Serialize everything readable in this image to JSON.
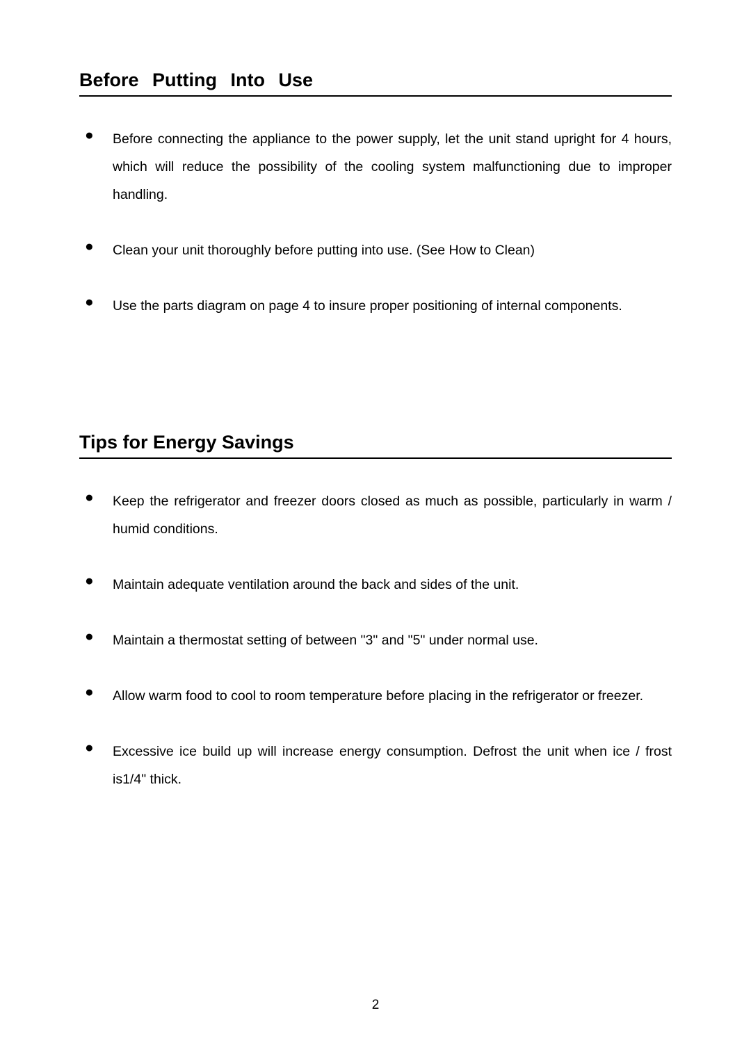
{
  "sections": [
    {
      "heading": "Before  Putting  Into  Use",
      "heading_spaced": true,
      "items": [
        {
          "text": "Before connecting the appliance to the power supply, let the unit stand upright for 4 hours, which will reduce the possibility of the cooling system malfunctioning due to improper handling.",
          "justified": true
        },
        {
          "text": "Clean your unit thoroughly before putting into use. (See How to Clean)",
          "justified": false
        },
        {
          "text": "Use the parts diagram on page 4 to insure proper positioning of internal components.",
          "justified": false
        }
      ]
    },
    {
      "heading": "Tips for Energy Savings",
      "heading_spaced": false,
      "items": [
        {
          "text": "Keep the refrigerator and freezer doors closed as much as possible, particularly in warm / humid conditions.",
          "justified": true
        },
        {
          "text": "Maintain adequate ventilation around the back and sides of the unit.",
          "justified": false
        },
        {
          "text": "Maintain a thermostat setting of between \"3\" and \"5\" under normal use.",
          "justified": false
        },
        {
          "text": "Allow warm food to cool to room temperature before placing in the refrigerator or freezer.",
          "justified": false
        },
        {
          "text": "Excessive ice build up will increase energy consumption.   Defrost the unit when ice / frost is1/4\" thick.",
          "justified": true
        }
      ]
    }
  ],
  "bullet_char": "●",
  "page_number": "2",
  "colors": {
    "text": "#000000",
    "background": "#ffffff",
    "border": "#000000"
  },
  "typography": {
    "heading_fontsize": 27,
    "body_fontsize": 19.5,
    "pagenum_fontsize": 19,
    "body_lineheight": 2.05
  }
}
